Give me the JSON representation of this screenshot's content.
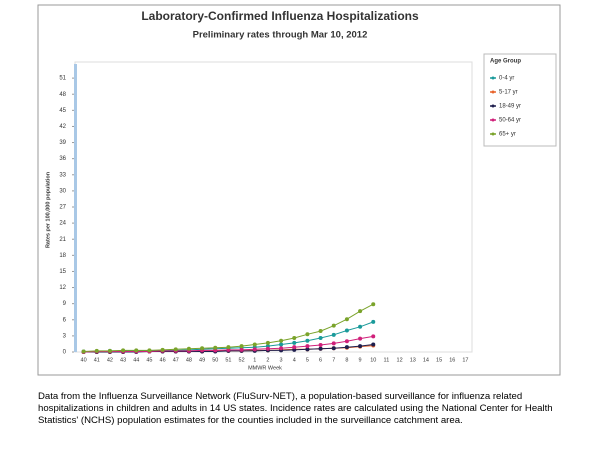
{
  "chart_data": {
    "type": "line",
    "title": "Laboratory-Confirmed Influenza Hospitalizations",
    "subtitle": "Preliminary rates through Mar 10, 2012",
    "y_label": "Rates per 100,000 population",
    "x_label": "MMWR Week",
    "legend_title": "Age Group",
    "caption": "Data from the Influenza  Surveillance Network (FluSurv-NET),  a population-based surveillance for influenza related hospitalizations in children and adults in 14 US states.  Incidence rates are calculated using the National Center for Health Statistics' (NCHS) population estimates for the counties included in the surveillance catchment area.",
    "categories": [
      "40",
      "41",
      "42",
      "43",
      "44",
      "45",
      "46",
      "47",
      "48",
      "49",
      "50",
      "51",
      "52",
      "1",
      "2",
      "3",
      "4",
      "5",
      "6",
      "7",
      "8",
      "9",
      "10",
      "11",
      "12",
      "13",
      "14",
      "15",
      "16",
      "17"
    ],
    "series": [
      {
        "name": "0-4 yr",
        "color": "#1a9a9a",
        "values": [
          0.1,
          0.1,
          0.2,
          0.2,
          0.2,
          0.2,
          0.3,
          0.3,
          0.4,
          0.5,
          0.6,
          0.7,
          0.8,
          0.9,
          1.1,
          1.4,
          1.7,
          2.1,
          2.6,
          3.2,
          4.0,
          4.7,
          5.6,
          null,
          null,
          null,
          null,
          null,
          null,
          null
        ]
      },
      {
        "name": "5-17 yr",
        "color": "#e8642c",
        "values": [
          0,
          0,
          0,
          0,
          0.1,
          0.1,
          0.1,
          0.1,
          0.1,
          0.1,
          0.2,
          0.2,
          0.2,
          0.3,
          0.3,
          0.4,
          0.5,
          0.5,
          0.6,
          0.7,
          0.8,
          1.0,
          1.2,
          null,
          null,
          null,
          null,
          null,
          null,
          null
        ]
      },
      {
        "name": "18-49 yr",
        "color": "#1f1f4e",
        "values": [
          0,
          0,
          0,
          0,
          0,
          0.1,
          0.1,
          0.1,
          0.1,
          0.1,
          0.1,
          0.2,
          0.2,
          0.2,
          0.3,
          0.3,
          0.4,
          0.5,
          0.6,
          0.7,
          0.9,
          1.1,
          1.4,
          null,
          null,
          null,
          null,
          null,
          null,
          null
        ]
      },
      {
        "name": "50-64 yr",
        "color": "#d0207a",
        "values": [
          0,
          0.1,
          0.1,
          0.1,
          0.1,
          0.1,
          0.2,
          0.2,
          0.2,
          0.3,
          0.3,
          0.4,
          0.4,
          0.5,
          0.6,
          0.7,
          0.9,
          1.1,
          1.3,
          1.6,
          2.0,
          2.5,
          2.9,
          null,
          null,
          null,
          null,
          null,
          null,
          null
        ]
      },
      {
        "name": "65+ yr",
        "color": "#7aa32a",
        "values": [
          0.1,
          0.2,
          0.2,
          0.3,
          0.3,
          0.3,
          0.4,
          0.5,
          0.6,
          0.7,
          0.8,
          0.9,
          1.1,
          1.4,
          1.7,
          2.1,
          2.6,
          3.3,
          3.9,
          4.9,
          6.1,
          7.6,
          8.9,
          null,
          null,
          null,
          null,
          null,
          null,
          null
        ]
      }
    ],
    "ylim": [
      0,
      54
    ],
    "yticks": [
      0,
      3,
      6,
      9,
      12,
      15,
      18,
      21,
      24,
      27,
      30,
      33,
      36,
      39,
      42,
      45,
      48,
      51
    ],
    "grid": false
  }
}
